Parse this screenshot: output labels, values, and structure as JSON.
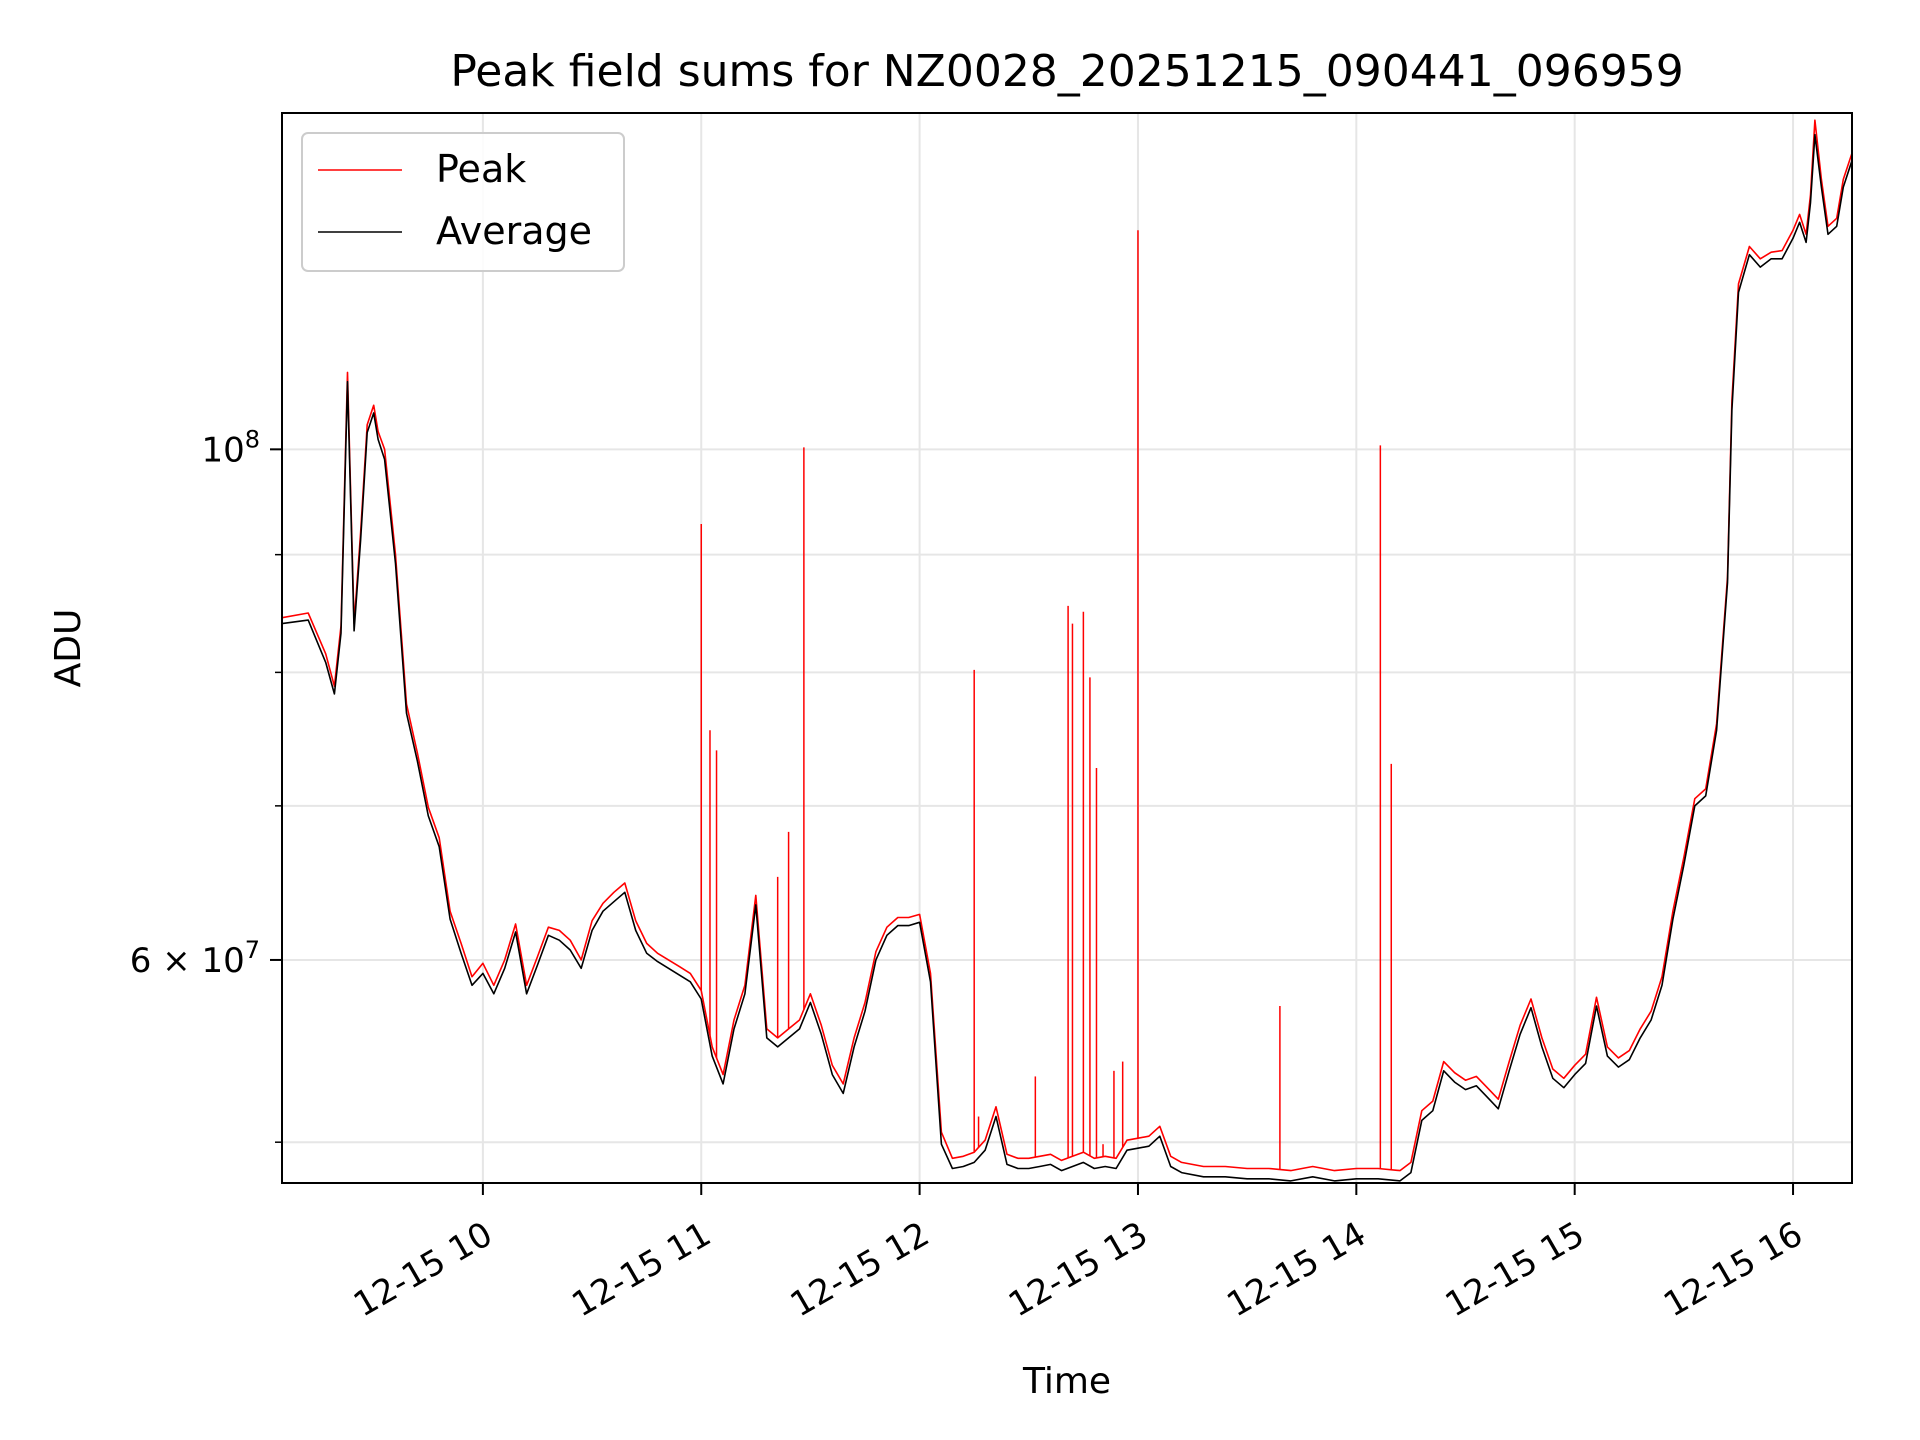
{
  "chart_data": {
    "type": "line",
    "title": "Peak field sums for NZ0028_20251215_090441_096959",
    "xlabel": "Time",
    "ylabel": "ADU",
    "yscale": "log",
    "grid": true,
    "legend_position": "upper-left",
    "x_unit": "hours since 2025-12-15 00:00",
    "xlim": [
      9.08,
      16.27
    ],
    "ylim": [
      48000000,
      140000000
    ],
    "x_ticks": [
      {
        "x": 10,
        "label": "12-15 10"
      },
      {
        "x": 11,
        "label": "12-15 11"
      },
      {
        "x": 12,
        "label": "12-15 12"
      },
      {
        "x": 13,
        "label": "12-15 13"
      },
      {
        "x": 14,
        "label": "12-15 14"
      },
      {
        "x": 15,
        "label": "12-15 15"
      },
      {
        "x": 16,
        "label": "12-15 16"
      }
    ],
    "y_ticks_major": [
      {
        "y": 100000000,
        "base": "10",
        "exp": "8",
        "mant": ""
      },
      {
        "y": 60000000,
        "base": "10",
        "exp": "7",
        "mant": "6 × "
      }
    ],
    "y_ticks_minor": [
      50000000,
      70000000,
      80000000,
      90000000
    ],
    "series": [
      {
        "name": "Peak",
        "color": "#ff0000",
        "x": [
          9.08,
          9.2,
          9.28,
          9.32,
          9.35,
          9.38,
          9.41,
          9.44,
          9.47,
          9.5,
          9.52,
          9.55,
          9.6,
          9.65,
          9.7,
          9.75,
          9.8,
          9.85,
          9.9,
          9.95,
          10.0,
          10.05,
          10.1,
          10.15,
          10.2,
          10.25,
          10.3,
          10.35,
          10.4,
          10.45,
          10.5,
          10.55,
          10.6,
          10.65,
          10.7,
          10.75,
          10.8,
          10.85,
          10.9,
          10.95,
          11.0,
          11.05,
          11.1,
          11.15,
          11.2,
          11.25,
          11.3,
          11.35,
          11.4,
          11.45,
          11.5,
          11.55,
          11.6,
          11.65,
          11.7,
          11.75,
          11.8,
          11.85,
          11.9,
          11.95,
          12.0,
          12.05,
          12.1,
          12.15,
          12.2,
          12.25,
          12.3,
          12.35,
          12.4,
          12.45,
          12.5,
          12.55,
          12.6,
          12.65,
          12.7,
          12.75,
          12.8,
          12.85,
          12.9,
          12.95,
          13.0,
          13.05,
          13.1,
          13.15,
          13.2,
          13.3,
          13.4,
          13.5,
          13.6,
          13.7,
          13.8,
          13.9,
          14.0,
          14.1,
          14.2,
          14.25,
          14.3,
          14.35,
          14.4,
          14.45,
          14.5,
          14.55,
          14.6,
          14.65,
          14.7,
          14.75,
          14.8,
          14.85,
          14.9,
          14.95,
          15.0,
          15.05,
          15.1,
          15.15,
          15.2,
          15.25,
          15.3,
          15.35,
          15.4,
          15.45,
          15.5,
          15.55,
          15.6,
          15.65,
          15.7,
          15.72,
          15.75,
          15.8,
          15.85,
          15.9,
          15.95,
          16.0,
          16.03,
          16.06,
          16.08,
          16.1,
          16.13,
          16.16,
          16.2,
          16.23,
          16.27
        ],
        "y": [
          84500000,
          84900000,
          81500000,
          78900000,
          83800000,
          108000000,
          84000000,
          92000000,
          102500000,
          104500000,
          101800000,
          100000000,
          90000000,
          77500000,
          73800000,
          69900000,
          67800000,
          63000000,
          61000000,
          59000000,
          59800000,
          58500000,
          60000000,
          62200000,
          58500000,
          60200000,
          62000000,
          61800000,
          61200000,
          60000000,
          62400000,
          63500000,
          64200000,
          64800000,
          62400000,
          61000000,
          60400000,
          60000000,
          59600000,
          59200000,
          58200000,
          55000000,
          53500000,
          56500000,
          58500000,
          64000000,
          56000000,
          55500000,
          56000000,
          56500000,
          58000000,
          56200000,
          54000000,
          53000000,
          55500000,
          57500000,
          60500000,
          62000000,
          62600000,
          62600000,
          62800000,
          59200000,
          50500000,
          49200000,
          49300000,
          49500000,
          50100000,
          51800000,
          49400000,
          49200000,
          49200000,
          49300000,
          49400000,
          49100000,
          49300000,
          49500000,
          49200000,
          49300000,
          49200000,
          50100000,
          50200000,
          50300000,
          50800000,
          49300000,
          49000000,
          48800000,
          48800000,
          48700000,
          48700000,
          48600000,
          48800000,
          48600000,
          48700000,
          48700000,
          48600000,
          49000000,
          51600000,
          52100000,
          54200000,
          53600000,
          53200000,
          53400000,
          52800000,
          52200000,
          54200000,
          56200000,
          57700000,
          55500000,
          53800000,
          53300000,
          54000000,
          54600000,
          57800000,
          55000000,
          54400000,
          54800000,
          56000000,
          57000000,
          59000000,
          63000000,
          66500000,
          70500000,
          71200000,
          76000000,
          88000000,
          105000000,
          118000000,
          122500000,
          121000000,
          121800000,
          122000000,
          124500000,
          126500000,
          124000000,
          129000000,
          139000000,
          131000000,
          125000000,
          126000000,
          131000000,
          134500000
        ],
        "spikes": [
          {
            "x": 11.0,
            "y": 92800000
          },
          {
            "x": 11.04,
            "y": 75500000
          },
          {
            "x": 11.07,
            "y": 74000000
          },
          {
            "x": 11.35,
            "y": 65200000
          },
          {
            "x": 11.4,
            "y": 68200000
          },
          {
            "x": 11.47,
            "y": 100200000
          },
          {
            "x": 12.25,
            "y": 80200000
          },
          {
            "x": 12.27,
            "y": 51300000
          },
          {
            "x": 12.53,
            "y": 53400000
          },
          {
            "x": 12.68,
            "y": 85500000
          },
          {
            "x": 12.7,
            "y": 84000000
          },
          {
            "x": 12.75,
            "y": 85000000
          },
          {
            "x": 12.78,
            "y": 79600000
          },
          {
            "x": 12.81,
            "y": 72700000
          },
          {
            "x": 12.84,
            "y": 49900000
          },
          {
            "x": 12.89,
            "y": 53700000
          },
          {
            "x": 12.93,
            "y": 54200000
          },
          {
            "x": 13.0,
            "y": 124500000
          },
          {
            "x": 13.65,
            "y": 57300000
          },
          {
            "x": 14.11,
            "y": 100400000
          },
          {
            "x": 14.16,
            "y": 73000000
          }
        ]
      },
      {
        "name": "Average",
        "color": "#000000",
        "x": [
          9.08,
          9.2,
          9.28,
          9.32,
          9.35,
          9.38,
          9.41,
          9.44,
          9.47,
          9.5,
          9.52,
          9.55,
          9.6,
          9.65,
          9.7,
          9.75,
          9.8,
          9.85,
          9.9,
          9.95,
          10.0,
          10.05,
          10.1,
          10.15,
          10.2,
          10.25,
          10.3,
          10.35,
          10.4,
          10.45,
          10.5,
          10.55,
          10.6,
          10.65,
          10.7,
          10.75,
          10.8,
          10.85,
          10.9,
          10.95,
          11.0,
          11.05,
          11.1,
          11.15,
          11.2,
          11.25,
          11.3,
          11.35,
          11.4,
          11.45,
          11.5,
          11.55,
          11.6,
          11.65,
          11.7,
          11.75,
          11.8,
          11.85,
          11.9,
          11.95,
          12.0,
          12.05,
          12.1,
          12.15,
          12.2,
          12.25,
          12.3,
          12.35,
          12.4,
          12.45,
          12.5,
          12.55,
          12.6,
          12.65,
          12.7,
          12.75,
          12.8,
          12.85,
          12.9,
          12.95,
          13.0,
          13.05,
          13.1,
          13.15,
          13.2,
          13.3,
          13.4,
          13.5,
          13.6,
          13.7,
          13.8,
          13.9,
          14.0,
          14.1,
          14.2,
          14.25,
          14.3,
          14.35,
          14.4,
          14.45,
          14.5,
          14.55,
          14.6,
          14.65,
          14.7,
          14.75,
          14.8,
          14.85,
          14.9,
          14.95,
          15.0,
          15.05,
          15.1,
          15.15,
          15.2,
          15.25,
          15.3,
          15.35,
          15.4,
          15.45,
          15.5,
          15.55,
          15.6,
          15.65,
          15.7,
          15.72,
          15.75,
          15.8,
          15.85,
          15.9,
          15.95,
          16.0,
          16.03,
          16.06,
          16.08,
          16.1,
          16.13,
          16.16,
          16.2,
          16.23,
          16.27
        ],
        "y": [
          84000000,
          84300000,
          80800000,
          78300000,
          83200000,
          107000000,
          83400000,
          91300000,
          101700000,
          103700000,
          101000000,
          99000000,
          89200000,
          76800000,
          73200000,
          69300000,
          67200000,
          62500000,
          60400000,
          58500000,
          59200000,
          58000000,
          59500000,
          61700000,
          58000000,
          59700000,
          61500000,
          61200000,
          60600000,
          59500000,
          61800000,
          63000000,
          63600000,
          64200000,
          61800000,
          60400000,
          59900000,
          59500000,
          59100000,
          58700000,
          57700000,
          54500000,
          53000000,
          56000000,
          58000000,
          63400000,
          55500000,
          55000000,
          55500000,
          56000000,
          57500000,
          55700000,
          53500000,
          52500000,
          55000000,
          57000000,
          60000000,
          61500000,
          62100000,
          62100000,
          62300000,
          58700000,
          49900000,
          48700000,
          48800000,
          49000000,
          49600000,
          51300000,
          48900000,
          48700000,
          48700000,
          48800000,
          48900000,
          48600000,
          48800000,
          49000000,
          48700000,
          48800000,
          48700000,
          49600000,
          49700000,
          49800000,
          50300000,
          48800000,
          48500000,
          48300000,
          48300000,
          48200000,
          48200000,
          48100000,
          48300000,
          48100000,
          48200000,
          48200000,
          48100000,
          48500000,
          51100000,
          51600000,
          53700000,
          53100000,
          52700000,
          52900000,
          52300000,
          51700000,
          53700000,
          55700000,
          57200000,
          55000000,
          53300000,
          52800000,
          53500000,
          54100000,
          57300000,
          54500000,
          53900000,
          54300000,
          55500000,
          56500000,
          58500000,
          62500000,
          66000000,
          70000000,
          70700000,
          75500000,
          87500000,
          104000000,
          117000000,
          121500000,
          120000000,
          121000000,
          121000000,
          123500000,
          125500000,
          123000000,
          128000000,
          137000000,
          130000000,
          124000000,
          125000000,
          130000000,
          133500000
        ]
      }
    ]
  }
}
